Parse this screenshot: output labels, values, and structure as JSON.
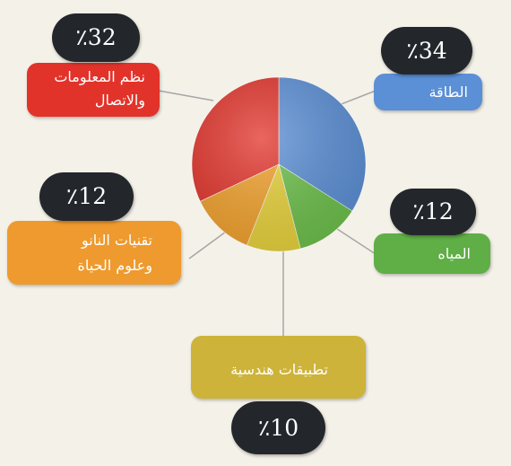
{
  "chart_data": {
    "type": "pie",
    "categories": [
      "الطاقة",
      "المياه",
      "تطبيقات هندسية",
      "تقنيات النانو وعلوم الحياة",
      "نظم المعلومات والاتصال"
    ],
    "values": [
      34,
      12,
      10,
      12,
      32
    ],
    "value_labels": [
      "٪34",
      "٪12",
      "٪10",
      "٪12",
      "٪32"
    ],
    "colors": [
      "#5b8fd6",
      "#6cc04a",
      "#e8d23a",
      "#f2a12b",
      "#e2332a"
    ],
    "legend": "callouts"
  },
  "labels": {
    "energy": "الطاقة",
    "water": "المياه",
    "engineering": "تطبيقات هندسية",
    "nano_line1": "تقنيات النانو",
    "nano_line2": "وعلوم الحياة",
    "ict_line1": "نظم المعلومات",
    "ict_line2": "والاتصال"
  },
  "percent_labels": {
    "energy": "٪34",
    "water": "٪12",
    "engineering": "٪10",
    "nano": "٪12",
    "ict": "٪32"
  },
  "box_colors": {
    "energy": "#5b8fd6",
    "water": "#5fae46",
    "engineering": "#cdb33a",
    "nano": "#ee9a2e",
    "ict": "#e2332a",
    "bubble": "#23272b",
    "connector": "#a6a6a6"
  }
}
